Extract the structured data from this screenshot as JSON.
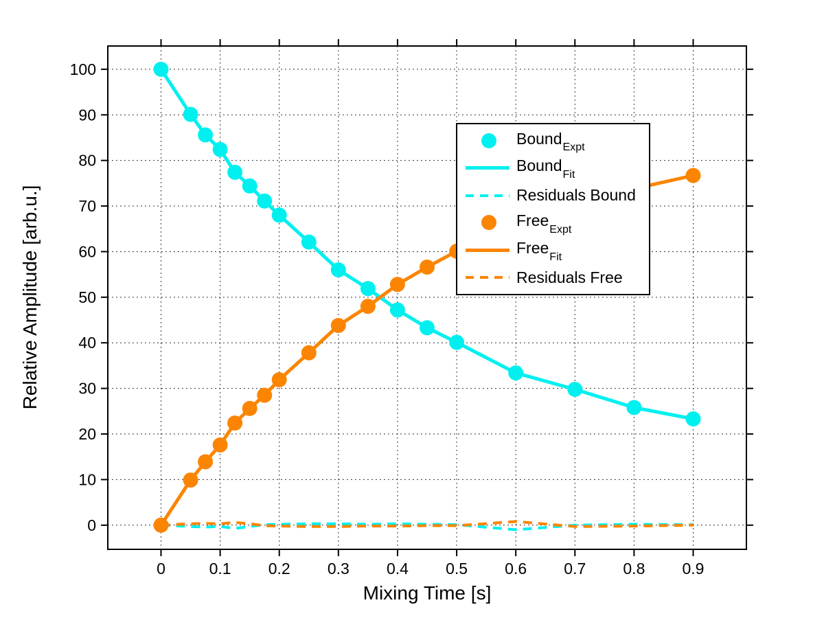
{
  "figure_bg": "#ffffff",
  "colors": {
    "bound": "#00F0F0",
    "free": "#FB8500",
    "axis": "#000000",
    "grid": "#000000",
    "legend_bg": "#ffffff"
  },
  "chart_data": {
    "type": "line",
    "title": "",
    "xlabel": "Mixing Time [s]",
    "ylabel": "Relative Amplitude [arb.u.]",
    "xlim": [
      -0.09,
      0.99
    ],
    "ylim": [
      -5.3,
      105.1
    ],
    "x_ticks": [
      0,
      0.1,
      0.2,
      0.3,
      0.4,
      0.5,
      0.6,
      0.7,
      0.8,
      0.9
    ],
    "x_tick_labels": [
      "0",
      "0.1",
      "0.2",
      "0.3",
      "0.4",
      "0.5",
      "0.6",
      "0.7",
      "0.8",
      "0.9"
    ],
    "y_ticks": [
      0,
      10,
      20,
      30,
      40,
      50,
      60,
      70,
      80,
      90,
      100
    ],
    "y_tick_labels": [
      "0",
      "10",
      "20",
      "30",
      "40",
      "50",
      "60",
      "70",
      "80",
      "90",
      "100"
    ],
    "grid": "dotted",
    "legend_position": "upper-center-right",
    "series": [
      {
        "name": "Bound_Expt",
        "style": "scatter",
        "color": "#00F0F0",
        "marker_radius": 11,
        "x": [
          0,
          0.05,
          0.075,
          0.1,
          0.125,
          0.15,
          0.175,
          0.2,
          0.25,
          0.3,
          0.35,
          0.4,
          0.45,
          0.5,
          0.6,
          0.7,
          0.8,
          0.9
        ],
        "y": [
          100,
          90.1,
          85.6,
          82.4,
          77.4,
          74.4,
          71.1,
          68.0,
          62.1,
          56.0,
          51.9,
          47.2,
          43.3,
          40.1,
          33.4,
          29.8,
          25.8,
          23.3
        ]
      },
      {
        "name": "Bound_Fit",
        "style": "line",
        "color": "#00F0F0",
        "line_width": 5,
        "x": [
          0,
          0.05,
          0.075,
          0.1,
          0.125,
          0.15,
          0.175,
          0.2,
          0.25,
          0.3,
          0.35,
          0.4,
          0.45,
          0.5,
          0.6,
          0.7,
          0.8,
          0.9
        ],
        "y": [
          100,
          90.1,
          85.6,
          82.4,
          77.4,
          74.4,
          71.1,
          68.0,
          62.1,
          56.0,
          51.9,
          47.2,
          43.3,
          40.1,
          33.4,
          29.8,
          25.8,
          23.3
        ]
      },
      {
        "name": "Residuals Bound",
        "style": "dashed",
        "color": "#00F0F0",
        "line_width": 4,
        "x": [
          0,
          0.05,
          0.075,
          0.1,
          0.125,
          0.15,
          0.175,
          0.2,
          0.25,
          0.3,
          0.35,
          0.4,
          0.45,
          0.5,
          0.6,
          0.7,
          0.8,
          0.9
        ],
        "y": [
          0.0,
          -0.3,
          -0.4,
          -0.3,
          -0.7,
          -0.3,
          0.1,
          0.2,
          0.3,
          0.3,
          0.2,
          0.3,
          0.2,
          0.1,
          -1.0,
          0.0,
          0.2,
          0.1
        ]
      },
      {
        "name": "Free_Expt",
        "style": "scatter",
        "color": "#FB8500",
        "marker_radius": 11,
        "x": [
          0,
          0.05,
          0.075,
          0.1,
          0.125,
          0.15,
          0.175,
          0.2,
          0.25,
          0.3,
          0.35,
          0.4,
          0.45,
          0.5,
          0.9
        ],
        "y": [
          0,
          9.9,
          13.9,
          17.6,
          22.4,
          25.6,
          28.5,
          31.9,
          37.8,
          43.8,
          48.0,
          52.8,
          56.6,
          60.1,
          76.7
        ]
      },
      {
        "name": "Free_Fit",
        "style": "line",
        "color": "#FB8500",
        "line_width": 5,
        "x": [
          0,
          0.05,
          0.075,
          0.1,
          0.125,
          0.15,
          0.175,
          0.2,
          0.25,
          0.3,
          0.35,
          0.4,
          0.45,
          0.5,
          0.6,
          0.7,
          0.8,
          0.9
        ],
        "y": [
          0,
          9.9,
          13.9,
          17.6,
          22.4,
          25.6,
          28.5,
          31.9,
          37.8,
          43.8,
          48.0,
          52.8,
          56.6,
          60.1,
          65.9,
          70.3,
          73.8,
          76.7
        ]
      },
      {
        "name": "Residuals Free",
        "style": "dashed",
        "color": "#FB8500",
        "line_width": 4,
        "x": [
          0,
          0.05,
          0.075,
          0.1,
          0.125,
          0.15,
          0.175,
          0.2,
          0.25,
          0.3,
          0.35,
          0.4,
          0.45,
          0.5,
          0.6,
          0.7,
          0.8,
          0.9
        ],
        "y": [
          0.0,
          0.3,
          0.4,
          0.3,
          0.6,
          0.3,
          -0.1,
          -0.2,
          -0.3,
          -0.3,
          -0.2,
          -0.2,
          -0.1,
          -0.1,
          0.8,
          -0.3,
          -0.2,
          0.0
        ]
      }
    ]
  },
  "legend": {
    "entries": [
      {
        "swatch": "marker",
        "color": "#00F0F0",
        "label_main": "Bound",
        "label_sub": "Expt"
      },
      {
        "swatch": "line",
        "color": "#00F0F0",
        "label_main": "Bound",
        "label_sub": "Fit"
      },
      {
        "swatch": "dash",
        "color": "#00F0F0",
        "label_main": "Residuals Bound",
        "label_sub": ""
      },
      {
        "swatch": "marker",
        "color": "#FB8500",
        "label_main": "Free",
        "label_sub": "Expt"
      },
      {
        "swatch": "line",
        "color": "#FB8500",
        "label_main": "Free",
        "label_sub": "Fit"
      },
      {
        "swatch": "dash",
        "color": "#FB8500",
        "label_main": "Residuals Free",
        "label_sub": ""
      }
    ]
  }
}
